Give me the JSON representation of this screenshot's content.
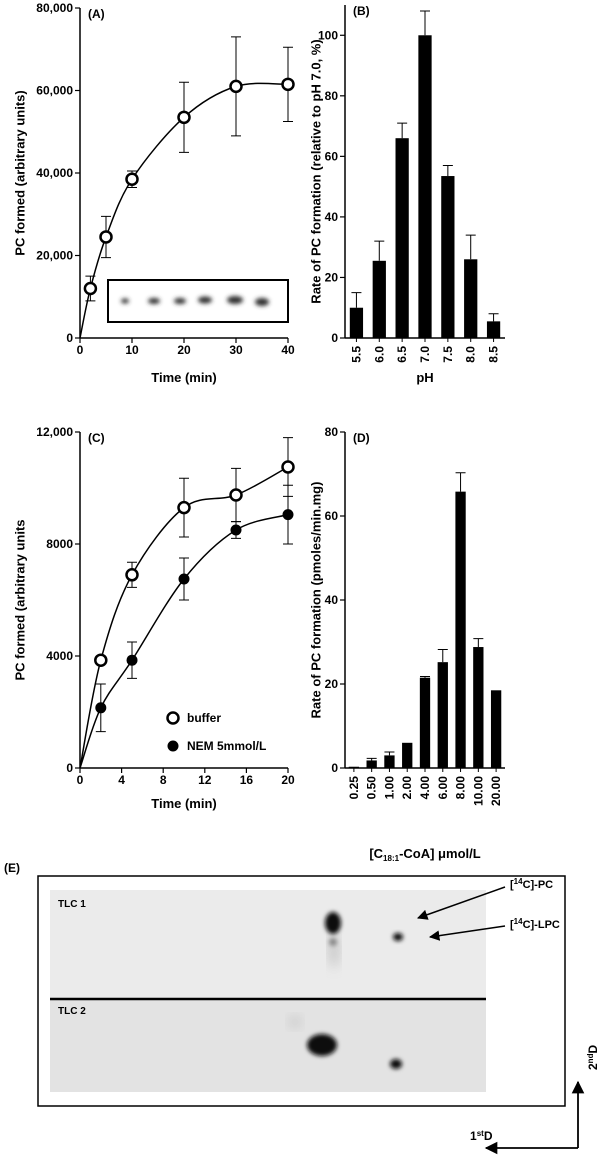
{
  "chart_data": [
    {
      "type": "scatter",
      "title": "(A)",
      "xlabel": "Time (min)",
      "ylabel": "PC formed (arbitrary units)",
      "xlim": [
        0,
        40
      ],
      "xticks": [
        0,
        10,
        20,
        30,
        40
      ],
      "ylim": [
        0,
        80000
      ],
      "yticks": [
        0,
        {
          "value": 20000,
          "label": "20,000"
        },
        {
          "value": 40000,
          "label": "40,000"
        },
        {
          "value": 60000,
          "label": "60,000"
        },
        {
          "value": 80000,
          "label": "80,000"
        }
      ],
      "series": [
        {
          "color": "#000000",
          "marker": "open",
          "x": [
            2,
            5,
            10,
            20,
            30,
            40
          ],
          "values": [
            12000,
            24500,
            38500,
            53500,
            61000,
            61500
          ],
          "errors": [
            3000,
            5000,
            2000,
            8500,
            12000,
            9000
          ]
        }
      ]
    },
    {
      "type": "bar",
      "title": "(B)",
      "xlabel": "pH",
      "ylabel": "Rate of PC formation (relative to pH 7.0, %)",
      "categories": [
        "5.5",
        "6.0",
        "6.5",
        "7.0",
        "7.5",
        "8.0",
        "8.5"
      ],
      "values": [
        10,
        25.5,
        66,
        100,
        53.5,
        26,
        5.5
      ],
      "errors": [
        5,
        6.5,
        5,
        8,
        3.5,
        8,
        2.5
      ],
      "color": "#000000",
      "ylim": [
        0,
        110
      ],
      "yticks": [
        0,
        20,
        40,
        60,
        80,
        100
      ]
    },
    {
      "type": "scatter",
      "title": "(C)",
      "xlabel": "Time (min)",
      "ylabel": "PC formed (arbitrary units",
      "xlim": [
        0,
        20
      ],
      "xticks": [
        0,
        4,
        8,
        12,
        16,
        20
      ],
      "ylim": [
        0,
        12000
      ],
      "yticks": [
        0,
        4000,
        8000,
        {
          "value": 12000,
          "label": "12,000"
        }
      ],
      "legend": "lower right",
      "series": [
        {
          "name": "buffer",
          "color": "#000000",
          "marker": "open",
          "x": [
            2,
            5,
            10,
            15,
            20
          ],
          "values": [
            3850,
            6900,
            9300,
            9750,
            10750
          ],
          "errors": [
            0,
            450,
            1050,
            950,
            1050
          ]
        },
        {
          "name": "NEM 5mmol/L",
          "color": "#000000",
          "marker": "filled",
          "x": [
            2,
            5,
            10,
            15,
            20
          ],
          "values": [
            2150,
            3850,
            6750,
            8500,
            9050
          ],
          "errors": [
            850,
            650,
            750,
            300,
            1050
          ]
        }
      ]
    },
    {
      "type": "bar",
      "title": "(D)",
      "xlabel": [
        "[C",
        "18:1",
        "-CoA]  μmol/L"
      ],
      "ylabel": "Rate of PC formation (pmoles/min.mg)",
      "categories": [
        "0.25",
        "0.50",
        "1.00",
        "2.00",
        "4.00",
        "6.00",
        "8.00",
        "10.00",
        "20.00"
      ],
      "values": [
        0.3,
        1.8,
        3.0,
        6.0,
        21.5,
        25.2,
        65.8,
        28.8,
        18.5
      ],
      "errors": [
        0,
        0.5,
        0.8,
        0,
        0.3,
        3,
        4.5,
        2,
        0
      ],
      "color": "#000000",
      "ylim": [
        0,
        80
      ],
      "yticks": [
        0,
        20,
        40,
        60,
        80
      ]
    }
  ],
  "panel_e": {
    "label": "(E)",
    "tlc1": "TLC 1",
    "tlc2": "TLC 2",
    "pc_label": [
      "[",
      "14",
      "C]-PC"
    ],
    "lpc_label": [
      "[",
      "14",
      "C]-LPC"
    ],
    "second_dim": [
      "2",
      "nd",
      "D"
    ],
    "first_dim": [
      "1",
      "st",
      "D"
    ]
  }
}
